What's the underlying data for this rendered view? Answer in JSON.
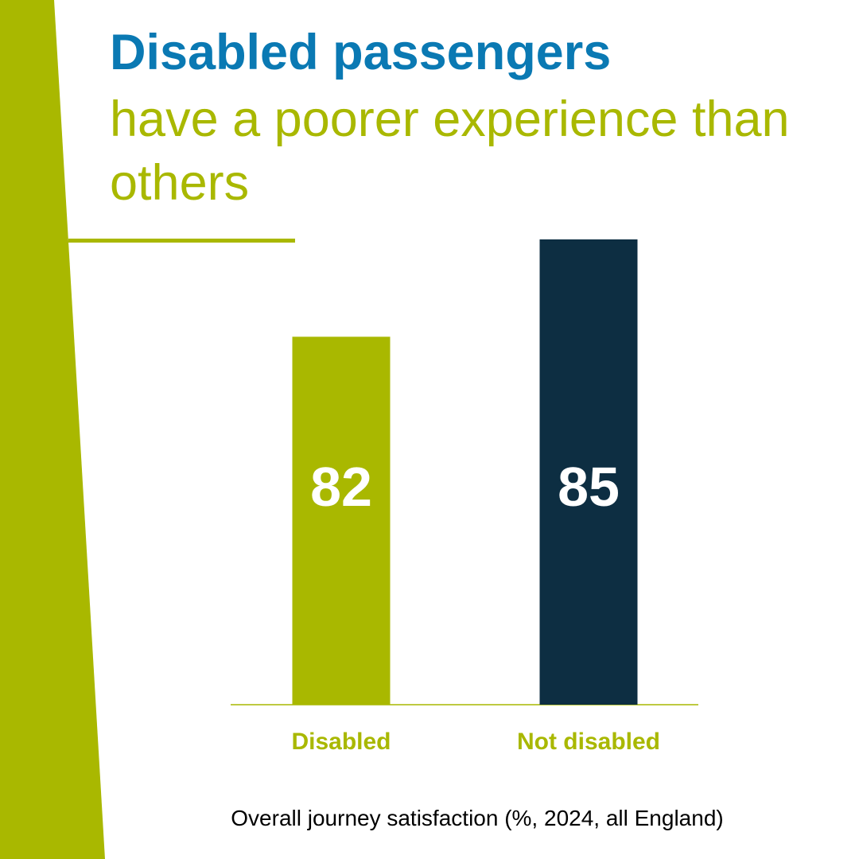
{
  "header": {
    "title_bold": "Disabled passengers",
    "title_rest": "have a poorer experience than others"
  },
  "caption": "Overall journey satisfaction (%, 2024, all England)",
  "colors": {
    "accent_green": "#a9b800",
    "title_blue": "#0a79b3",
    "navy": "#0d2e42"
  },
  "chart_data": {
    "type": "bar",
    "categories": [
      "Disabled",
      "Not disabled"
    ],
    "values": [
      82,
      85
    ],
    "colors": [
      "#a9b800",
      "#0d2e42"
    ],
    "label_color": "#a9b800",
    "title": "",
    "xlabel": "",
    "ylabel": "",
    "data_labels": true,
    "grid": false
  }
}
